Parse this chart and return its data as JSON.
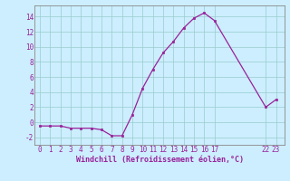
{
  "x": [
    0,
    1,
    2,
    3,
    4,
    5,
    6,
    7,
    8,
    9,
    10,
    11,
    12,
    13,
    14,
    15,
    16,
    17,
    22,
    23
  ],
  "y": [
    -0.5,
    -0.5,
    -0.5,
    -0.8,
    -0.8,
    -0.8,
    -1.0,
    -1.8,
    -1.8,
    1.0,
    4.5,
    7.0,
    9.2,
    10.7,
    12.5,
    13.8,
    14.5,
    13.5,
    2.0,
    3.0
  ],
  "line_color": "#992299",
  "marker_color": "#992299",
  "bg_color": "#cceeff",
  "grid_color": "#99cccc",
  "xlabel": "Windchill (Refroidissement éolien,°C)",
  "xticks": [
    0,
    1,
    2,
    3,
    4,
    5,
    6,
    7,
    8,
    9,
    10,
    11,
    12,
    13,
    14,
    15,
    16,
    17,
    22,
    23
  ],
  "yticks": [
    -2,
    0,
    2,
    4,
    6,
    8,
    10,
    12,
    14
  ],
  "ylim": [
    -3.0,
    15.5
  ],
  "xlim": [
    -0.5,
    23.8
  ],
  "tick_fontsize": 5.5,
  "xlabel_fontsize": 6.0
}
